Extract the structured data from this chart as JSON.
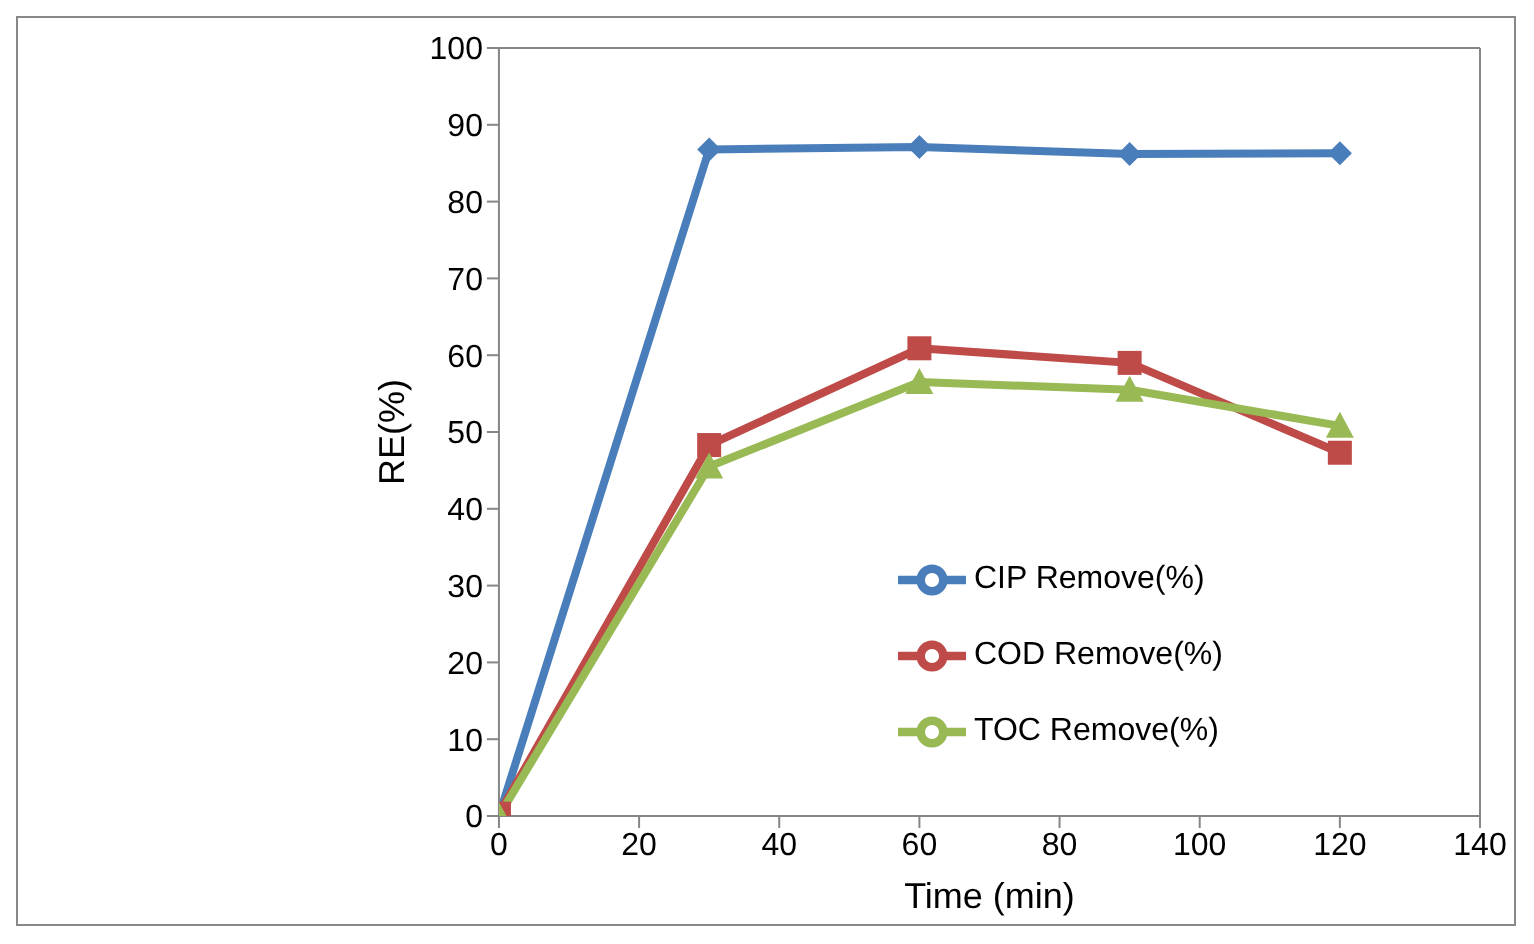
{
  "chart_data": {
    "type": "line",
    "xlabel": "Time (min)",
    "ylabel": "RE(%)",
    "x": [
      0,
      30,
      60,
      90,
      120
    ],
    "series": [
      {
        "name": "CIP Remove(%)",
        "color": "#4a7ebb",
        "values": [
          0,
          86.8,
          87.1,
          86.2,
          86.3
        ],
        "marker": "diamond"
      },
      {
        "name": "COD Remove(%)",
        "color": "#be4b48",
        "values": [
          0.3,
          48.3,
          60.9,
          59.0,
          47.3
        ],
        "marker": "square"
      },
      {
        "name": "TOC Remove(%)",
        "color": "#98b954",
        "values": [
          0,
          45.5,
          56.5,
          55.5,
          50.8
        ],
        "marker": "triangle"
      }
    ],
    "xlim": [
      0,
      140
    ],
    "xticks": [
      0,
      20,
      40,
      60,
      80,
      100,
      120,
      140
    ],
    "ylim": [
      0,
      100
    ],
    "yticks": [
      0,
      10,
      20,
      30,
      40,
      50,
      60,
      70,
      80,
      90,
      100
    ],
    "grid": false,
    "legend": "bottom right",
    "line_style": "solid"
  }
}
